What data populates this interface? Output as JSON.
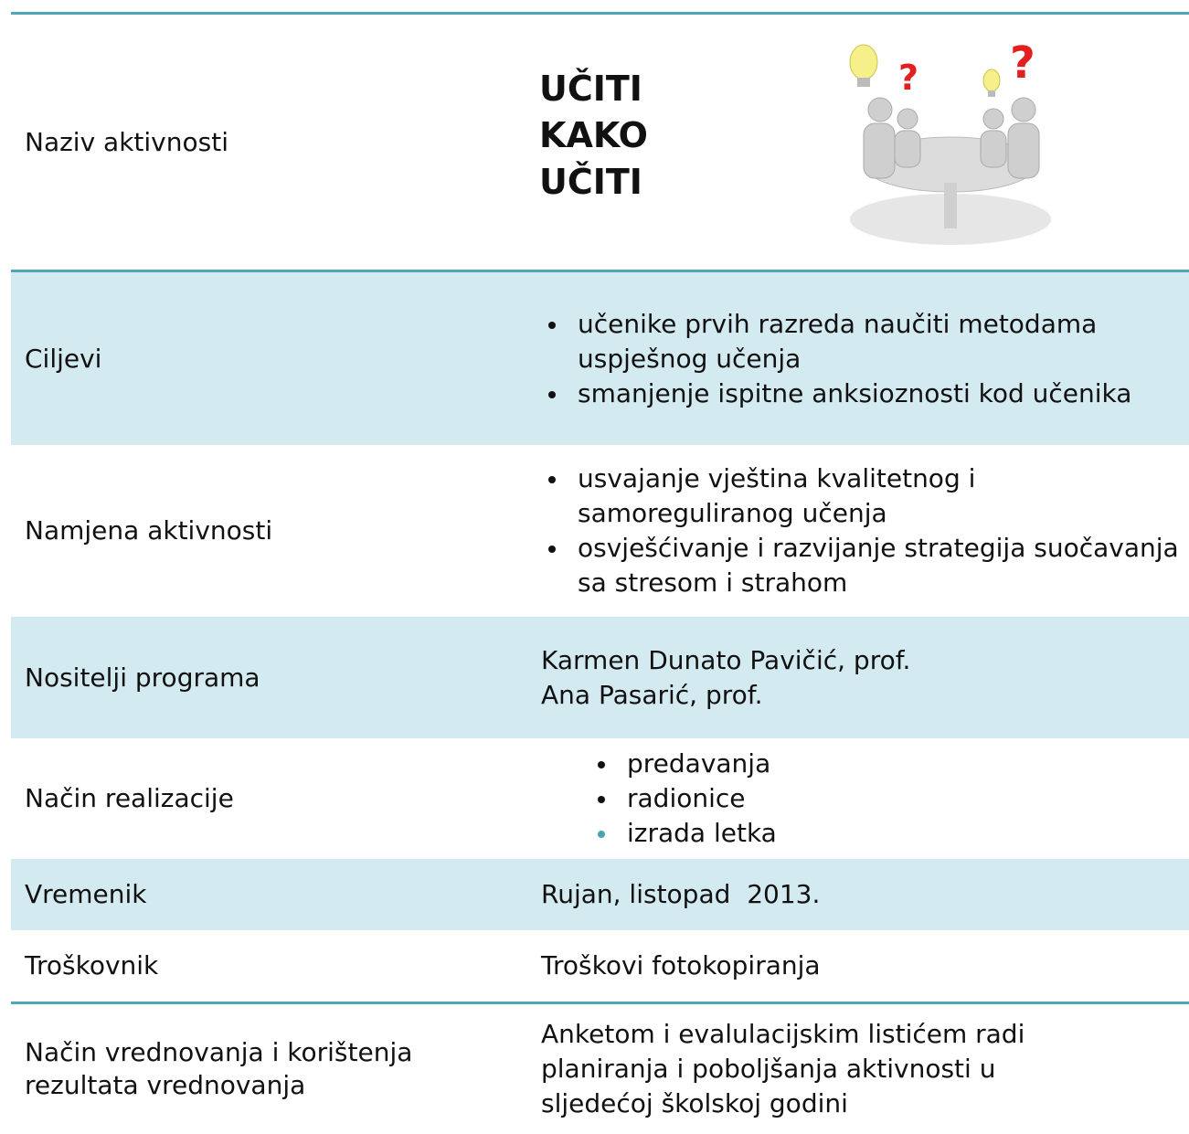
{
  "table": {
    "rows": [
      {
        "label": "Naziv aktivnosti",
        "title": [
          "UČITI",
          "KAKO",
          "UČITI"
        ]
      },
      {
        "label": "Ciljevi",
        "items": [
          "učenike prvih razreda naučiti metodama uspješnog učenja",
          "smanjenje ispitne anksioznosti kod učenika"
        ]
      },
      {
        "label": "Namjena aktivnosti",
        "items": [
          "usvajanje vještina kvalitetnog i samoreguliranog učenja",
          "osvješćivanje i razvijanje strategija suočavanja sa stresom i strahom"
        ]
      },
      {
        "label": "Nositelji programa",
        "lines": [
          "Karmen Dunato Pavičić, prof.",
          "Ana Pasarić, prof."
        ]
      },
      {
        "label": "Način realizacije",
        "items": [
          "predavanja",
          "radionice",
          "izrada letka"
        ]
      },
      {
        "label": "Vremenik",
        "lines": [
          "Rujan, listopad  2013."
        ]
      },
      {
        "label": "Troškovnik",
        "lines": [
          "Troškovi fotokopiranja"
        ]
      },
      {
        "label": "Način vrednovanja i korištenja rezultata vrednovanja",
        "lines": [
          "Anketom i evalulacijskim listićem radi planiranja i poboljšanja aktivnosti u sljedećoj školskoj godini"
        ]
      }
    ]
  }
}
